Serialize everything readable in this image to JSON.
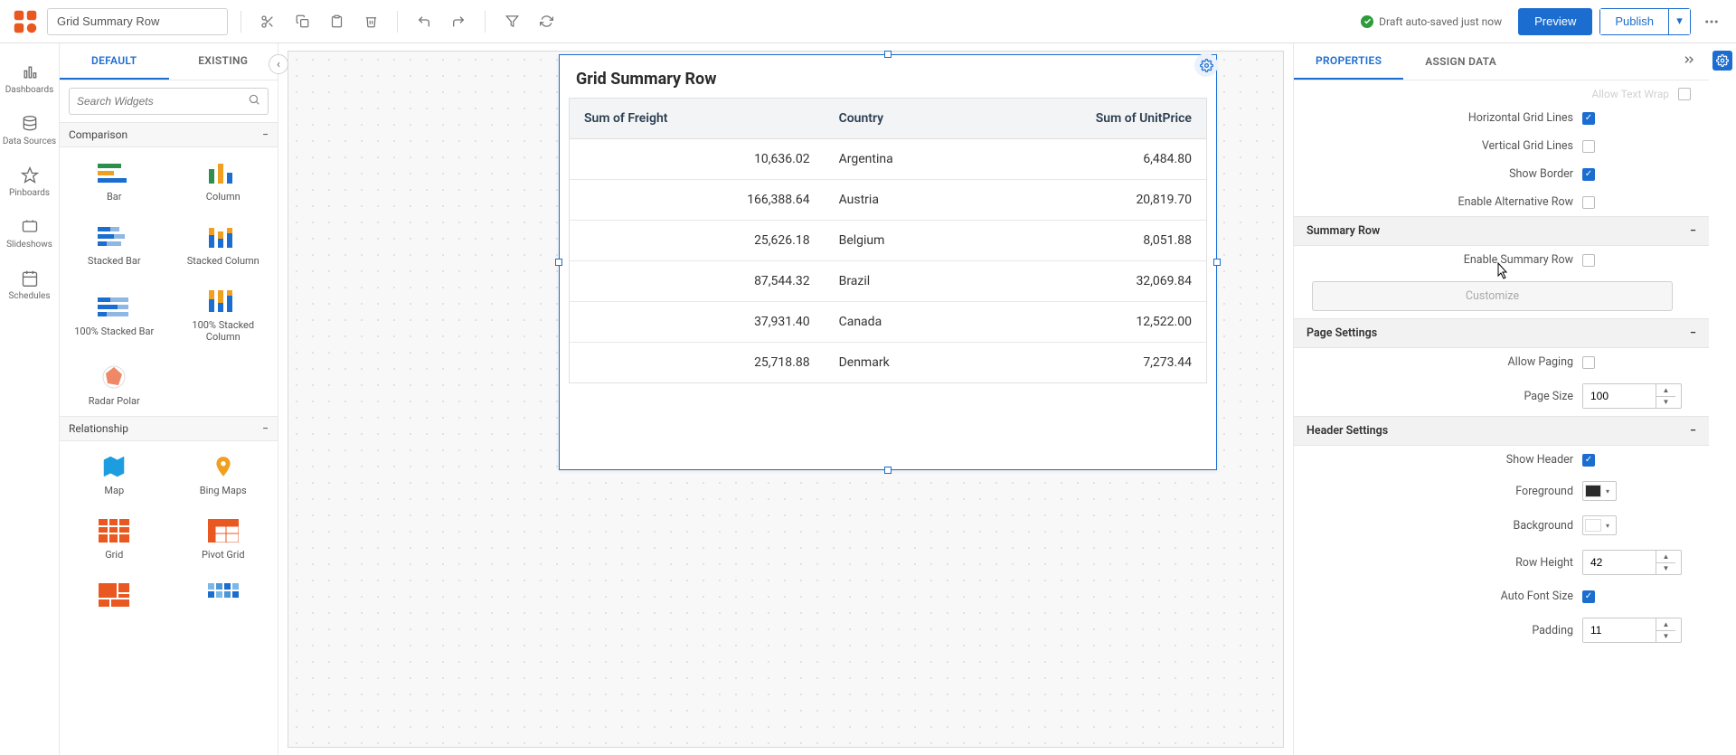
{
  "toolbar": {
    "title": "Grid Summary Row",
    "save_status": "Draft auto-saved just now",
    "preview_label": "Preview",
    "publish_label": "Publish"
  },
  "leftrail": {
    "dashboards": "Dashboards",
    "datasources": "Data Sources",
    "pinboards": "Pinboards",
    "slideshows": "Slideshows",
    "schedules": "Schedules"
  },
  "palette": {
    "tab_default": "DEFAULT",
    "tab_existing": "EXISTING",
    "search_placeholder": "Search Widgets",
    "cat_comparison": "Comparison",
    "cat_relationship": "Relationship",
    "items": {
      "bar": "Bar",
      "column": "Column",
      "stacked_bar": "Stacked Bar",
      "stacked_column": "Stacked Column",
      "stacked_bar_100": "100% Stacked Bar",
      "stacked_column_100": "100% Stacked Column",
      "radar_polar": "Radar Polar",
      "map": "Map",
      "bing_maps": "Bing Maps",
      "grid": "Grid",
      "pivot_grid": "Pivot Grid"
    }
  },
  "widget": {
    "title": "Grid Summary Row",
    "columns": [
      "Sum of Freight",
      "Country",
      "Sum of UnitPrice"
    ],
    "rows": [
      [
        "10,636.02",
        "Argentina",
        "6,484.80"
      ],
      [
        "166,388.64",
        "Austria",
        "20,819.70"
      ],
      [
        "25,626.18",
        "Belgium",
        "8,051.88"
      ],
      [
        "87,544.32",
        "Brazil",
        "32,069.84"
      ],
      [
        "37,931.40",
        "Canada",
        "12,522.00"
      ],
      [
        "25,718.88",
        "Denmark",
        "7,273.44"
      ]
    ]
  },
  "props": {
    "tab_properties": "PROPERTIES",
    "tab_assign": "ASSIGN DATA",
    "allow_text_wrap_label": "Allow Text Wrap",
    "horizontal_grid_lines": "Horizontal Grid Lines",
    "vertical_grid_lines": "Vertical Grid Lines",
    "show_border": "Show Border",
    "enable_alt_row": "Enable Alternative Row",
    "section_summary": "Summary Row",
    "enable_summary_row": "Enable Summary Row",
    "customize_btn": "Customize",
    "section_page": "Page Settings",
    "allow_paging": "Allow Paging",
    "page_size_label": "Page Size",
    "page_size_value": "100",
    "section_header": "Header Settings",
    "show_header": "Show Header",
    "foreground": "Foreground",
    "background": "Background",
    "row_height_label": "Row Height",
    "row_height_value": "42",
    "auto_font_size": "Auto Font Size",
    "padding_label": "Padding",
    "padding_value": "11",
    "colors": {
      "fg": "#2b2b2b",
      "bg": "#ffffff"
    }
  }
}
